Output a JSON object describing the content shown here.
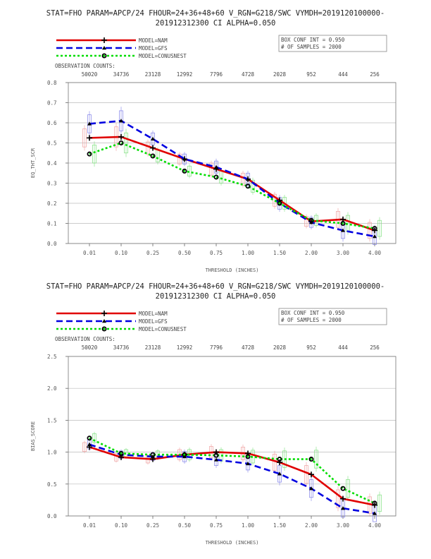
{
  "chart_data": [
    {
      "type": "line",
      "title": "STAT=FHO PARAM=APCP/24 FHOUR=24+36+48+60 V_RGN=G218/SWC VYMDH=2019120100000-",
      "subtitle": "201912312300 CI ALPHA=0.050",
      "xlabel": "THRESHOLD (INCHES)",
      "ylabel": "EQ_THT_SCR",
      "categories": [
        "0.01",
        "0.10",
        "0.25",
        "0.50",
        "0.75",
        "1.00",
        "1.50",
        "2.00",
        "3.00",
        "4.00"
      ],
      "ylim": [
        0,
        0.8
      ],
      "yticks": [
        "0.0",
        "0.1",
        "0.2",
        "0.3",
        "0.4",
        "0.5",
        "0.6",
        "0.7",
        "0.8"
      ],
      "grid": true,
      "obs_label": "OBSERVATION COUNTS:",
      "obs_counts": [
        "50020",
        "34736",
        "23128",
        "12992",
        "7796",
        "4728",
        "2028",
        "952",
        "444",
        "256"
      ],
      "box_info": [
        "BOX CONF INT = 0.950",
        "# OF SAMPLES =  2000"
      ],
      "series": [
        {
          "name": "MODEL=NAM",
          "color": "#e00000",
          "dash": "solid",
          "marker": "plus",
          "values": [
            0.525,
            0.53,
            0.475,
            0.42,
            0.37,
            0.32,
            0.215,
            0.11,
            0.12,
            0.065
          ]
        },
        {
          "name": "MODEL=GFS",
          "color": "#0000e0",
          "dash": "dash",
          "marker": "triangle",
          "values": [
            0.595,
            0.61,
            0.52,
            0.42,
            0.38,
            0.32,
            0.2,
            0.105,
            0.065,
            0.035
          ]
        },
        {
          "name": "MODEL=CONUSNEST",
          "color": "#00dd00",
          "dash": "dot",
          "marker": "circle",
          "values": [
            0.445,
            0.5,
            0.435,
            0.36,
            0.33,
            0.285,
            0.2,
            0.115,
            0.1,
            0.075
          ]
        }
      ]
    },
    {
      "type": "line",
      "title": "STAT=FHO PARAM=APCP/24 FHOUR=24+36+48+60 V_RGN=G218/SWC VYMDH=2019120100000-",
      "subtitle": "201912312300 CI ALPHA=0.050",
      "xlabel": "THRESHOLD (INCHES)",
      "ylabel": "BIAS_SCORE",
      "categories": [
        "0.01",
        "0.10",
        "0.25",
        "0.50",
        "0.75",
        "1.00",
        "1.50",
        "2.00",
        "3.00",
        "4.00"
      ],
      "ylim": [
        0,
        2.5
      ],
      "yticks": [
        "0.0",
        "0.5",
        "1.0",
        "1.5",
        "2.0",
        "2.5"
      ],
      "grid": true,
      "obs_label": "OBSERVATION COUNTS:",
      "obs_counts": [
        "50020",
        "34736",
        "23128",
        "12992",
        "7796",
        "4728",
        "2028",
        "952",
        "444",
        "256"
      ],
      "box_info": [
        "BOX CONF INT = 0.950",
        "# OF SAMPLES =  2000"
      ],
      "series": [
        {
          "name": "MODEL=NAM",
          "color": "#e00000",
          "dash": "solid",
          "marker": "plus",
          "values": [
            1.08,
            0.92,
            0.89,
            0.96,
            1.0,
            0.98,
            0.84,
            0.65,
            0.27,
            0.17
          ]
        },
        {
          "name": "MODEL=GFS",
          "color": "#0000e0",
          "dash": "dash",
          "marker": "triangle",
          "values": [
            1.12,
            0.96,
            0.93,
            0.93,
            0.88,
            0.82,
            0.66,
            0.43,
            0.12,
            0.04
          ]
        },
        {
          "name": "MODEL=CONUSNEST",
          "color": "#00dd00",
          "dash": "dot",
          "marker": "circle",
          "values": [
            1.22,
            0.98,
            0.96,
            0.96,
            0.95,
            0.93,
            0.89,
            0.89,
            0.43,
            0.2
          ]
        }
      ]
    }
  ]
}
